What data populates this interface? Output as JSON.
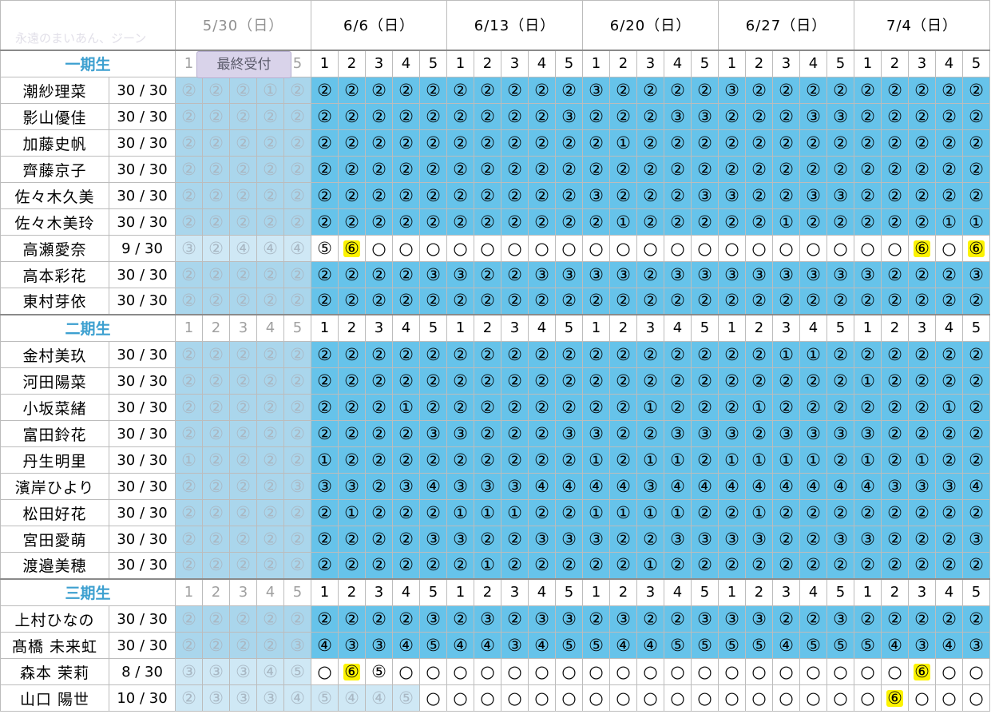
{
  "watermark": "永遠のまいあん、ジーン",
  "badge": "最終受付",
  "dates": [
    "5/30（日）",
    "6/6（日）",
    "6/13（日）",
    "6/20（日）",
    "6/27（日）",
    "7/4（日）"
  ],
  "slots": [
    "1",
    "2",
    "3",
    "4",
    "5"
  ],
  "groups": [
    {
      "label": "一期生",
      "members": [
        {
          "name": "潮紗理菜",
          "count": "30 / 30",
          "cells": [
            "②",
            "②",
            "②",
            "①",
            "②",
            "②",
            "②",
            "②",
            "②",
            "②",
            "②",
            "②",
            "②",
            "②",
            "②",
            "③",
            "②",
            "②",
            "②",
            "②",
            "③",
            "②",
            "②",
            "②",
            "②",
            "②",
            "②",
            "②",
            "②",
            "②"
          ]
        },
        {
          "name": "影山優佳",
          "count": "30 / 30",
          "cells": [
            "②",
            "②",
            "②",
            "②",
            "②",
            "②",
            "②",
            "②",
            "②",
            "②",
            "②",
            "②",
            "②",
            "②",
            "③",
            "②",
            "②",
            "②",
            "③",
            "③",
            "②",
            "②",
            "②",
            "③",
            "③",
            "②",
            "②",
            "②",
            "②",
            "②"
          ]
        },
        {
          "name": "加藤史帆",
          "count": "30 / 30",
          "cells": [
            "②",
            "②",
            "②",
            "②",
            "②",
            "②",
            "②",
            "②",
            "②",
            "②",
            "②",
            "②",
            "②",
            "②",
            "②",
            "②",
            "①",
            "②",
            "②",
            "②",
            "②",
            "②",
            "②",
            "②",
            "②",
            "②",
            "②",
            "②",
            "②",
            "②"
          ]
        },
        {
          "name": "齊藤京子",
          "count": "30 / 30",
          "cells": [
            "②",
            "②",
            "②",
            "②",
            "②",
            "②",
            "②",
            "②",
            "②",
            "②",
            "②",
            "②",
            "②",
            "②",
            "②",
            "②",
            "②",
            "②",
            "②",
            "②",
            "②",
            "②",
            "②",
            "②",
            "②",
            "②",
            "②",
            "②",
            "②",
            "②"
          ]
        },
        {
          "name": "佐々木久美",
          "count": "30 / 30",
          "cells": [
            "②",
            "②",
            "②",
            "②",
            "②",
            "②",
            "②",
            "②",
            "②",
            "②",
            "②",
            "②",
            "②",
            "②",
            "②",
            "③",
            "②",
            "②",
            "②",
            "③",
            "③",
            "②",
            "②",
            "③",
            "③",
            "②",
            "②",
            "②",
            "②",
            "②"
          ]
        },
        {
          "name": "佐々木美玲",
          "count": "30 / 30",
          "cells": [
            "②",
            "②",
            "②",
            "②",
            "②",
            "②",
            "②",
            "②",
            "②",
            "②",
            "②",
            "②",
            "②",
            "②",
            "②",
            "②",
            "①",
            "②",
            "②",
            "②",
            "②",
            "②",
            "①",
            "②",
            "②",
            "②",
            "②",
            "②",
            "①",
            "①"
          ]
        },
        {
          "name": "高瀬愛奈",
          "count": "9 / 30",
          "cells": [
            "③",
            "②",
            "④",
            "④",
            "④",
            "⑤",
            "⑥",
            "○",
            "○",
            "○",
            "○",
            "○",
            "○",
            "○",
            "○",
            "○",
            "○",
            "○",
            "○",
            "○",
            "○",
            "○",
            "○",
            "○",
            "○",
            "○",
            "○",
            "⑥",
            "○",
            "⑥"
          ]
        },
        {
          "name": "高本彩花",
          "count": "30 / 30",
          "cells": [
            "②",
            "②",
            "②",
            "②",
            "②",
            "②",
            "②",
            "②",
            "②",
            "③",
            "③",
            "②",
            "②",
            "③",
            "③",
            "③",
            "③",
            "②",
            "③",
            "③",
            "③",
            "③",
            "③",
            "③",
            "③",
            "③",
            "②",
            "②",
            "②",
            "③"
          ]
        },
        {
          "name": "東村芽依",
          "count": "30 / 30",
          "cells": [
            "②",
            "②",
            "②",
            "②",
            "②",
            "②",
            "②",
            "②",
            "②",
            "②",
            "②",
            "②",
            "②",
            "②",
            "②",
            "②",
            "②",
            "②",
            "②",
            "②",
            "②",
            "②",
            "②",
            "②",
            "②",
            "②",
            "②",
            "②",
            "②",
            "②"
          ]
        }
      ]
    },
    {
      "label": "二期生",
      "members": [
        {
          "name": "金村美玖",
          "count": "30 / 30",
          "cells": [
            "②",
            "②",
            "②",
            "②",
            "②",
            "②",
            "②",
            "②",
            "②",
            "②",
            "②",
            "②",
            "②",
            "②",
            "②",
            "②",
            "②",
            "②",
            "②",
            "②",
            "②",
            "②",
            "①",
            "①",
            "②",
            "②",
            "②",
            "②",
            "②",
            "②"
          ]
        },
        {
          "name": "河田陽菜",
          "count": "30 / 30",
          "cells": [
            "②",
            "②",
            "②",
            "②",
            "②",
            "②",
            "②",
            "②",
            "②",
            "②",
            "②",
            "②",
            "②",
            "②",
            "②",
            "②",
            "②",
            "②",
            "②",
            "②",
            "②",
            "②",
            "②",
            "②",
            "②",
            "①",
            "②",
            "②",
            "②",
            "②"
          ]
        },
        {
          "name": "小坂菜緒",
          "count": "30 / 30",
          "cells": [
            "②",
            "②",
            "②",
            "②",
            "②",
            "②",
            "②",
            "②",
            "①",
            "②",
            "②",
            "②",
            "②",
            "②",
            "②",
            "②",
            "②",
            "①",
            "②",
            "②",
            "②",
            "①",
            "②",
            "②",
            "②",
            "②",
            "②",
            "②",
            "①",
            "②"
          ]
        },
        {
          "name": "富田鈴花",
          "count": "30 / 30",
          "cells": [
            "②",
            "②",
            "②",
            "②",
            "②",
            "②",
            "②",
            "②",
            "②",
            "③",
            "③",
            "②",
            "②",
            "②",
            "③",
            "③",
            "②",
            "②",
            "③",
            "③",
            "③",
            "②",
            "③",
            "③",
            "③",
            "③",
            "②",
            "②",
            "②",
            "②"
          ]
        },
        {
          "name": "丹生明里",
          "count": "30 / 30",
          "cells": [
            "①",
            "②",
            "②",
            "②",
            "②",
            "①",
            "②",
            "②",
            "②",
            "②",
            "②",
            "②",
            "②",
            "②",
            "②",
            "①",
            "②",
            "①",
            "①",
            "②",
            "①",
            "①",
            "①",
            "①",
            "②",
            "①",
            "②",
            "①",
            "②",
            "②"
          ]
        },
        {
          "name": "濱岸ひより",
          "count": "30 / 30",
          "cells": [
            "②",
            "②",
            "②",
            "②",
            "③",
            "③",
            "③",
            "②",
            "③",
            "④",
            "③",
            "③",
            "③",
            "④",
            "④",
            "④",
            "④",
            "③",
            "④",
            "④",
            "④",
            "④",
            "④",
            "④",
            "④",
            "④",
            "③",
            "③",
            "③",
            "④"
          ]
        },
        {
          "name": "松田好花",
          "count": "30 / 30",
          "cells": [
            "②",
            "②",
            "②",
            "②",
            "②",
            "②",
            "①",
            "②",
            "②",
            "②",
            "①",
            "①",
            "①",
            "②",
            "②",
            "①",
            "①",
            "①",
            "①",
            "②",
            "②",
            "①",
            "②",
            "②",
            "②",
            "②",
            "②",
            "②",
            "②",
            "②"
          ]
        },
        {
          "name": "宮田愛萌",
          "count": "30 / 30",
          "cells": [
            "②",
            "②",
            "②",
            "②",
            "②",
            "②",
            "②",
            "②",
            "②",
            "③",
            "③",
            "②",
            "②",
            "③",
            "③",
            "③",
            "②",
            "②",
            "③",
            "③",
            "③",
            "③",
            "②",
            "②",
            "③",
            "③",
            "②",
            "②",
            "②",
            "③"
          ]
        },
        {
          "name": "渡邉美穂",
          "count": "30 / 30",
          "cells": [
            "②",
            "②",
            "②",
            "②",
            "②",
            "②",
            "②",
            "②",
            "②",
            "②",
            "②",
            "①",
            "②",
            "②",
            "②",
            "②",
            "②",
            "①",
            "②",
            "②",
            "②",
            "②",
            "②",
            "②",
            "②",
            "②",
            "②",
            "②",
            "②",
            "②"
          ]
        }
      ]
    },
    {
      "label": "三期生",
      "members": [
        {
          "name": "上村ひなの",
          "count": "30 / 30",
          "cells": [
            "②",
            "②",
            "②",
            "②",
            "②",
            "②",
            "②",
            "②",
            "②",
            "③",
            "②",
            "③",
            "②",
            "③",
            "③",
            "②",
            "③",
            "②",
            "②",
            "③",
            "③",
            "③",
            "②",
            "②",
            "③",
            "②",
            "②",
            "②",
            "②",
            "②"
          ]
        },
        {
          "name": "髙橋 未来虹",
          "count": "30 / 30",
          "cells": [
            "②",
            "②",
            "②",
            "②",
            "③",
            "④",
            "③",
            "③",
            "④",
            "⑤",
            "④",
            "④",
            "③",
            "④",
            "⑤",
            "⑤",
            "④",
            "④",
            "⑤",
            "⑤",
            "⑤",
            "⑤",
            "④",
            "⑤",
            "⑤",
            "⑤",
            "④",
            "③",
            "④",
            "③"
          ]
        },
        {
          "name": "森本 茉莉",
          "count": "8 / 30",
          "cells": [
            "③",
            "③",
            "③",
            "④",
            "⑤",
            "○",
            "⑥",
            "⑤",
            "○",
            "○",
            "○",
            "○",
            "○",
            "○",
            "○",
            "○",
            "○",
            "○",
            "○",
            "○",
            "○",
            "○",
            "○",
            "○",
            "○",
            "○",
            "○",
            "⑥",
            "○",
            "○"
          ]
        },
        {
          "name": "山口 陽世",
          "count": "10 / 30",
          "cells": [
            "②",
            "③",
            "③",
            "③",
            "④",
            "⑤",
            "④",
            "④",
            "⑤",
            "○",
            "○",
            "○",
            "○",
            "○",
            "○",
            "○",
            "○",
            "○",
            "○",
            "○",
            "○",
            "○",
            "○",
            "○",
            "○",
            "○",
            "⑥",
            "○",
            "○",
            "○"
          ]
        }
      ]
    }
  ],
  "colors": {
    "full": "#66c3ea",
    "past": "#cfe8f5",
    "highlight": "#fcf300",
    "group_label": "#3da0d0",
    "badge_bg": "#d9d3ea"
  }
}
